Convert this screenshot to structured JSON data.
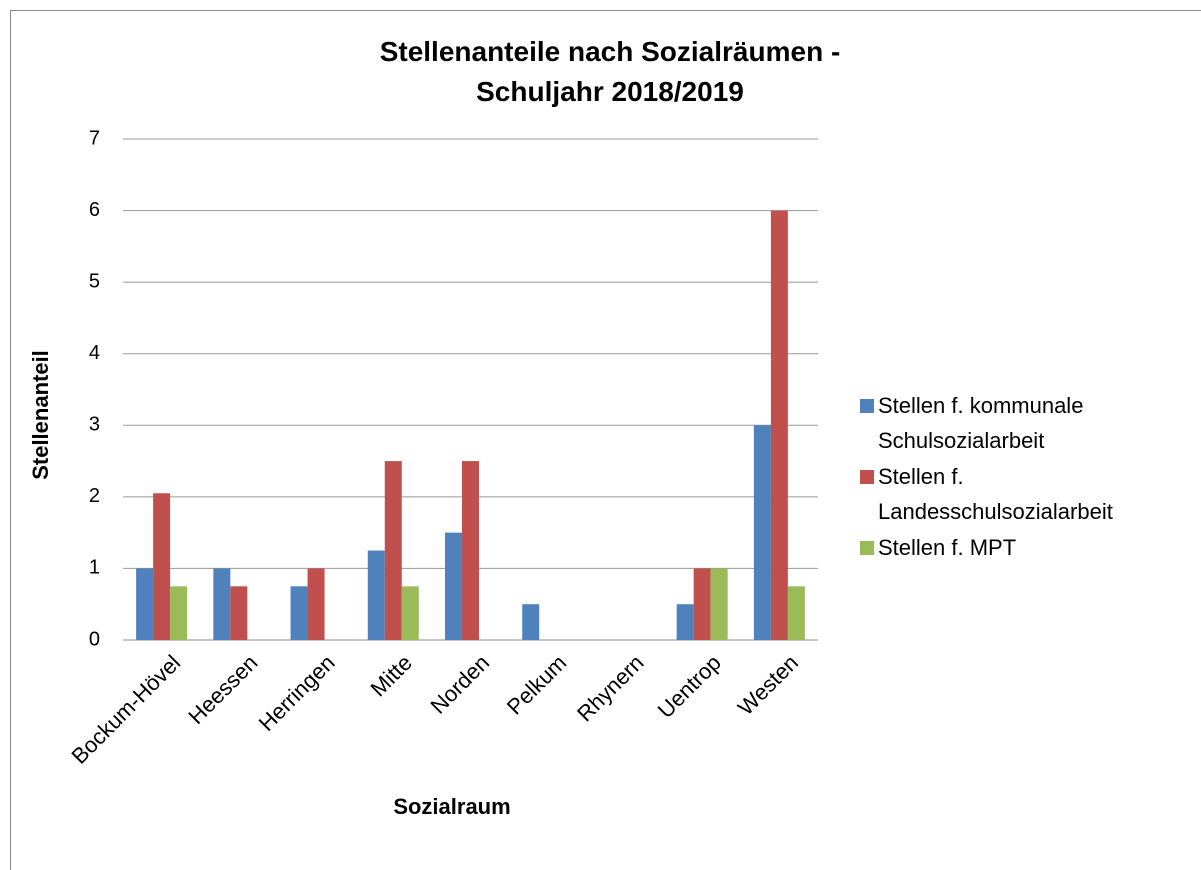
{
  "chart_data": {
    "type": "bar",
    "title": "Stellenanteile nach Sozialräumen - Schuljahr 2018/2019",
    "x_label": "Sozialraum",
    "y_label": "Stellenanteil",
    "categories": [
      "Bockum-Hövel",
      "Heessen",
      "Herringen",
      "Mitte",
      "Norden",
      "Pelkum",
      "Rhynern",
      "Uentrop",
      "Westen"
    ],
    "series": [
      {
        "name": "Stellen f. kommunale Schulsozialarbeit",
        "color": "#4f81bd",
        "values": [
          1,
          1,
          0.75,
          1.25,
          1.5,
          0.5,
          0,
          0.5,
          3
        ]
      },
      {
        "name": "Stellen f. Landesschulsozialarbeit",
        "color": "#c0504d",
        "values": [
          2.05,
          0.75,
          1,
          2.5,
          2.5,
          0,
          0,
          1,
          6
        ]
      },
      {
        "name": "Stellen f. MPT",
        "color": "#9bbb59",
        "values": [
          0.75,
          0,
          0,
          0.75,
          0,
          0,
          0,
          1,
          0.75
        ]
      }
    ],
    "ylim": [
      0,
      7
    ],
    "yticks": [
      0,
      1,
      2,
      3,
      4,
      5,
      6,
      7
    ],
    "grid": true,
    "legend": "right"
  }
}
